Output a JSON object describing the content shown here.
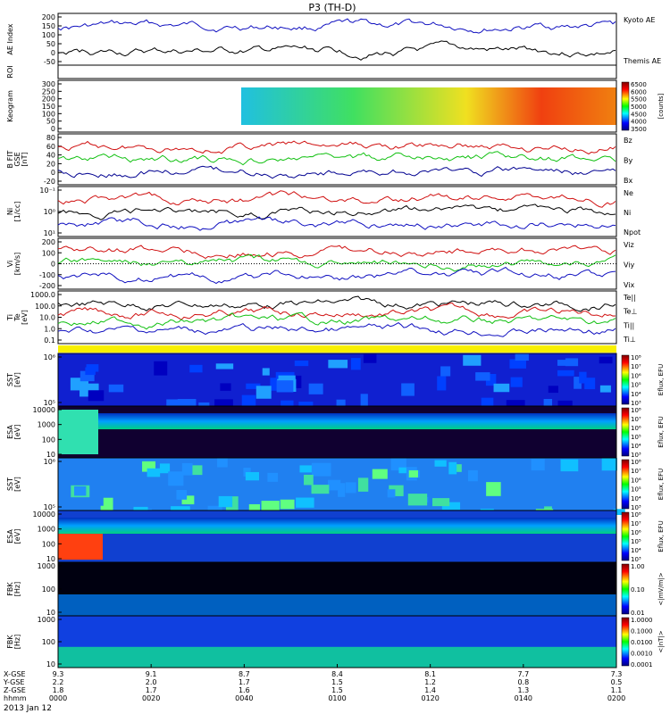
{
  "title": "P3 (TH-D)",
  "date_label": "2013 Jan 12",
  "colors": {
    "red": "#d01010",
    "green": "#10c010",
    "blue": "#1010c0",
    "black": "#000000",
    "navy": "#000090"
  },
  "chart_data": {
    "type": "multi-panel",
    "x_axis": {
      "row_labels": [
        "X-GSE",
        "Y-GSE",
        "Z-GSE",
        "hhmm"
      ],
      "ticks": [
        {
          "values": [
            "9.3",
            "2.2",
            "1.8",
            "0000"
          ]
        },
        {
          "values": [
            "9.1",
            "2.0",
            "1.7",
            "0020"
          ]
        },
        {
          "values": [
            "8.7",
            "1.7",
            "1.6",
            "0040"
          ]
        },
        {
          "values": [
            "8.4",
            "1.5",
            "1.5",
            "0100"
          ]
        },
        {
          "values": [
            "8.1",
            "1.2",
            "1.4",
            "0120"
          ]
        },
        {
          "values": [
            "7.7",
            "0.8",
            "1.3",
            "0140"
          ]
        },
        {
          "values": [
            "7.3",
            "0.5",
            "1.1",
            "0200"
          ]
        }
      ]
    },
    "panels": [
      {
        "id": "ae",
        "ylabel": [
          "AE Index"
        ],
        "ylim": [
          -50,
          200
        ],
        "yticks": [
          "200",
          "150",
          "100",
          "50",
          "0",
          "-50"
        ],
        "series": [
          {
            "name": "Kyoto AE",
            "color": "#1010c0"
          },
          {
            "name": "Themis AE",
            "color": "#000000"
          }
        ]
      },
      {
        "id": "roi",
        "ylabel": [
          "ROI"
        ],
        "yticks": []
      },
      {
        "id": "keogram",
        "ylabel": [
          "Keogram"
        ],
        "ylim": [
          0,
          300
        ],
        "yticks": [
          "300",
          "250",
          "200",
          "150",
          "100",
          "50",
          "0"
        ],
        "colorbar": {
          "ticks": [
            "6500",
            "6000",
            "5500",
            "5000",
            "4500",
            "4000",
            "3500"
          ],
          "unit": "[counts]"
        }
      },
      {
        "id": "bfgs",
        "ylabel": [
          "B FIT",
          "GSE",
          "[nT]"
        ],
        "ylim": [
          -20,
          80
        ],
        "yticks": [
          "80",
          "60",
          "40",
          "20",
          "0",
          "-20"
        ],
        "series": [
          {
            "name": "Bz",
            "color": "#d01010"
          },
          {
            "name": "By",
            "color": "#10c010"
          },
          {
            "name": "Bx",
            "color": "#000090"
          }
        ]
      },
      {
        "id": "ni",
        "ylabel": [
          "Ni",
          "[1/cc]"
        ],
        "yticks": [
          "10⁻¹",
          "10⁰",
          "10¹"
        ],
        "series": [
          {
            "name": "Ne",
            "color": "#d01010"
          },
          {
            "name": "Ni",
            "color": "#000000"
          },
          {
            "name": "Npot",
            "color": "#1010c0"
          }
        ]
      },
      {
        "id": "vi",
        "ylabel": [
          "Vi",
          "[km/s]"
        ],
        "ylim": [
          -200,
          200
        ],
        "yticks": [
          "200",
          "100",
          "0",
          "-100",
          "-200"
        ],
        "series": [
          {
            "name": "Viz",
            "color": "#d01010"
          },
          {
            "name": "Viy",
            "color": "#10c010"
          },
          {
            "name": "Vix",
            "color": "#1010c0"
          }
        ]
      },
      {
        "id": "ti",
        "ylabel": [
          "Ti",
          "Te",
          "[eV]"
        ],
        "yticks": [
          "1000.0",
          "100.0",
          "10.0",
          "1.0",
          "0.1"
        ],
        "series": [
          {
            "name": "Te||",
            "color": "#000000"
          },
          {
            "name": "Te⊥",
            "color": "#d01010"
          },
          {
            "name": "Ti||",
            "color": "#10c010"
          },
          {
            "name": "Ti⊥",
            "color": "#1010c0"
          }
        ]
      },
      {
        "id": "sst1",
        "ylabel": [
          "SST",
          "[eV]"
        ],
        "yticks": [
          "10⁶",
          "10⁵"
        ],
        "colorbar": {
          "ticks": [
            "10⁸",
            "10⁷",
            "10⁶",
            "10⁵",
            "10⁴",
            "10³"
          ],
          "unit": "Eflux, EFU"
        }
      },
      {
        "id": "esa1",
        "ylabel": [
          "ESA",
          "[eV]"
        ],
        "yticks": [
          "10000",
          "1000",
          "100",
          "10"
        ],
        "colorbar": {
          "ticks": [
            "10⁸",
            "10⁷",
            "10⁶",
            "10⁵",
            "10⁴",
            "10³"
          ],
          "unit": "Eflux, EFU"
        }
      },
      {
        "id": "sst2",
        "ylabel": [
          "SST",
          "[eV]"
        ],
        "yticks": [
          "10⁶",
          "10⁵"
        ],
        "colorbar": {
          "ticks": [
            "10⁸",
            "10⁷",
            "10⁶",
            "10⁵",
            "10⁴",
            "10³"
          ],
          "unit": "Eflux, EFU"
        }
      },
      {
        "id": "esa2",
        "ylabel": [
          "ESA",
          "[eV]"
        ],
        "yticks": [
          "10000",
          "1000",
          "100",
          "10"
        ],
        "colorbar": {
          "ticks": [
            "10⁸",
            "10⁷",
            "10⁶",
            "10⁵",
            "10⁴",
            "10³"
          ],
          "unit": "Eflux, EFU"
        }
      },
      {
        "id": "fbk1",
        "ylabel": [
          "FBK",
          "[Hz]"
        ],
        "yticks": [
          "1000",
          "100",
          "10"
        ],
        "colorbar": {
          "ticks": [
            "1.00",
            "0.10",
            "0.01"
          ],
          "unit": "<|mV/m|>"
        }
      },
      {
        "id": "fbk2",
        "ylabel": [
          "FBK",
          "[Hz]"
        ],
        "yticks": [
          "1000",
          "100",
          "10"
        ],
        "colorbar": {
          "ticks": [
            "1.0000",
            "0.1000",
            "0.0100",
            "0.0010",
            "0.0001"
          ],
          "unit": "<|nT|>"
        }
      }
    ]
  }
}
